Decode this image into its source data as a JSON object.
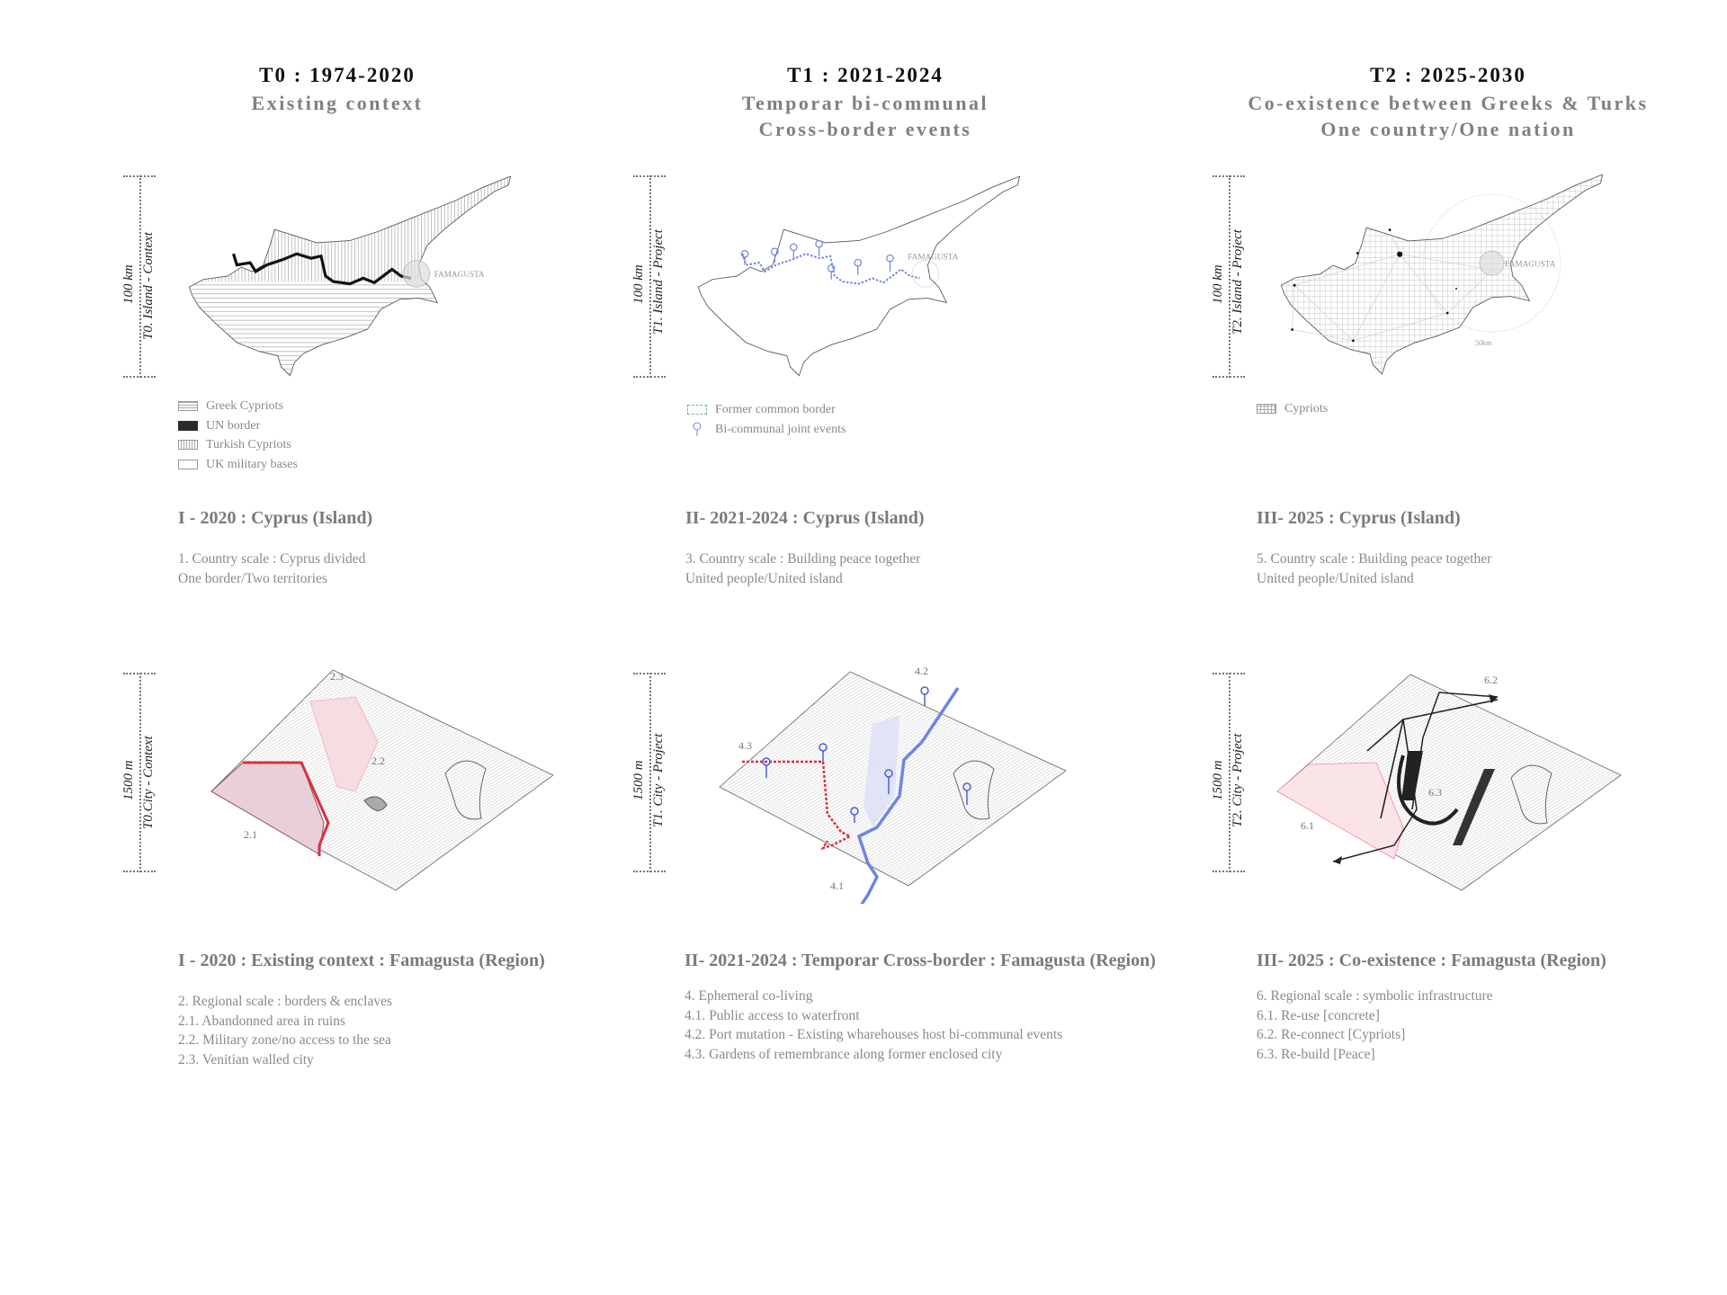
{
  "columns": [
    {
      "title": "T0 : 1974-2020",
      "subtitle": [
        "Existing context"
      ],
      "island_scale": {
        "distance": "100 km",
        "label": "T0. Island - Context"
      },
      "island_map": {
        "place": "FAMAGUSTA"
      },
      "legend": [
        {
          "pattern": "horizontal-hatch",
          "label": "Greek Cypriots"
        },
        {
          "pattern": "solid-black",
          "label": "UN border"
        },
        {
          "pattern": "vertical-hatch",
          "label": "Turkish Cypriots"
        },
        {
          "pattern": "empty",
          "label": "UK military bases"
        }
      ],
      "island_heading": "I - 2020 : Cyprus (Island)",
      "island_desc": [
        "1. Country scale : Cyprus divided",
        "One border/Two territories"
      ],
      "city_scale": {
        "distance": "1500 m",
        "label": "T0.City - Context"
      },
      "city_labels": {
        "a": "2.3",
        "b": "2.2",
        "c": "2.1"
      },
      "city_heading": "I -  2020 : Existing context : Famagusta (Region)",
      "city_desc": [
        "2. Regional scale : borders & enclaves",
        "2.1. Abandonned area in ruins",
        "2.2. Military zone/no access to the sea",
        "2.3. Venitian walled city"
      ]
    },
    {
      "title": "T1 : 2021-2024",
      "subtitle": [
        "Temporar  bi-communal",
        "Cross-border events"
      ],
      "island_scale": {
        "distance": "100 km",
        "label": "T1. Island - Project"
      },
      "island_map": {
        "place": "FAMAGUSTA"
      },
      "legend": [
        {
          "pattern": "dashed-outline",
          "label": "Former common border"
        },
        {
          "pattern": "pin",
          "label": "Bi-communal joint events"
        }
      ],
      "island_heading": "II- 2021-2024 : Cyprus (Island)",
      "island_desc": [
        "3. Country scale : Building peace together",
        "United people/United island"
      ],
      "city_scale": {
        "distance": "1500 m",
        "label": "T1. City - Project"
      },
      "city_labels": {
        "a": "4.2",
        "b": "4.3",
        "c": "4.1"
      },
      "city_heading": "II- 2021-2024 : Temporar Cross-border : Famagusta (Region)",
      "city_desc": [
        "4. Ephemeral co-living",
        "4.1. Public access to waterfront",
        "4.2. Port mutation - Existing wharehouses host bi-communal events",
        "4.3. Gardens of  remembrance along former enclosed city"
      ]
    },
    {
      "title": "T2 : 2025-2030",
      "subtitle": [
        "Co-existence between Greeks & Turks",
        "One country/One nation"
      ],
      "island_scale": {
        "distance": "100 km",
        "label": "T2. Island - Project"
      },
      "island_map": {
        "place": "FAMAGUSTA",
        "radius_label": "50km"
      },
      "legend": [
        {
          "pattern": "grid",
          "label": "Cypriots"
        }
      ],
      "island_heading": "III- 2025 : Cyprus (Island)",
      "island_desc": [
        "5. Country scale : Building peace together",
        "United people/United island"
      ],
      "city_scale": {
        "distance": "1500 m",
        "label": "T2. City - Project"
      },
      "city_labels": {
        "a": "6.2",
        "b": "6.3",
        "c": "6.1"
      },
      "city_heading": "III- 2025 : Co-existence : Famagusta (Region)",
      "city_desc": [
        "6. Regional scale : symbolic infrastructure",
        "6.1. Re-use [concrete]",
        "6.2. Re-connect [Cypriots]",
        "6.3. Re-build [Peace]"
      ]
    }
  ],
  "colors": {
    "border_black": "#111111",
    "event_blue": "#6f86e0",
    "zone_red": "#d8323c",
    "zone_pink": "#f2b8c0",
    "text_gray": "#808080"
  }
}
